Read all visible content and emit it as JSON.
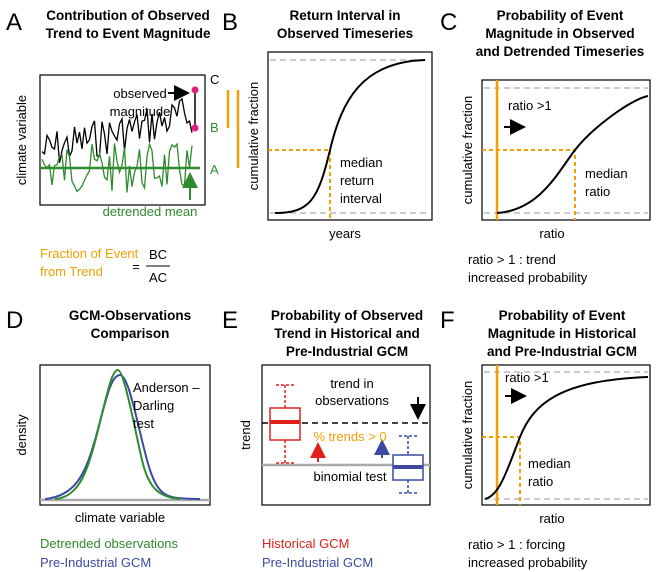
{
  "panels": [
    {
      "letter": "A",
      "title": [
        "Contribution of Observed",
        "Trend to Event Magnitude"
      ],
      "y_label": "climate variable",
      "observed": [
        "observed",
        "magnitude"
      ],
      "levels": [
        "C",
        "B",
        "A"
      ],
      "detrended": "detrended mean",
      "fraction_label": [
        "Fraction of Event",
        "from Trend"
      ],
      "equals": "=",
      "numerator": "BC",
      "denominator": "AC"
    },
    {
      "letter": "B",
      "title": [
        "Return Interval in",
        "Observed Timeseries"
      ],
      "y_label": "cumulative fraction",
      "x_label": "years",
      "note": [
        "median",
        "return",
        "interval"
      ]
    },
    {
      "letter": "C",
      "title": [
        "Probability of Event",
        "Magnitude in Observed",
        "and Detrended Timeseries"
      ],
      "y_label": "cumulative fraction",
      "x_label": "ratio",
      "arrow_label": "ratio >1",
      "note": [
        "median",
        "ratio"
      ],
      "caption": [
        "ratio > 1 : trend",
        "increased probability"
      ]
    },
    {
      "letter": "D",
      "title": [
        "GCM-Observations",
        "Comparison"
      ],
      "y_label": "density",
      "x_label": "climate variable",
      "note": [
        "Anderson –",
        "Darling",
        "test"
      ],
      "legend": [
        "Detrended observations",
        "Pre-Industrial GCM"
      ]
    },
    {
      "letter": "E",
      "title": [
        "Probability of Observed",
        "Trend in Historical and",
        "Pre-Industrial GCM"
      ],
      "y_label": "trend",
      "note": [
        "trend in",
        "observations"
      ],
      "pct": "% trends > 0",
      "test": "binomial test",
      "legend": [
        "Historical GCM",
        "Pre-Industrial GCM"
      ]
    },
    {
      "letter": "F",
      "title": [
        "Probability of Event",
        "Magnitude in Historical",
        "and Pre-Industrial GCM"
      ],
      "y_label": "cumulative fraction",
      "x_label": "ratio",
      "arrow_label": "ratio >1",
      "note": [
        "median",
        "ratio"
      ],
      "caption": [
        "ratio > 1 : forcing",
        "increased probability"
      ]
    }
  ]
}
